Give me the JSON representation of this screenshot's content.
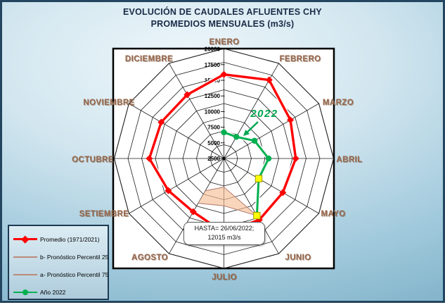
{
  "theme": {
    "page_bg_light": "#eef7fb",
    "page_bg_deep": "#86b6cc",
    "frame_border": "#24455f",
    "plot_bg": "#ffffff",
    "grid_color": "#1c1c1c",
    "month_label_color": "#96664a",
    "title_color": "#1a2b47",
    "promedio_color": "#ff0000",
    "percentil_line_color": "#bc8a7a",
    "band_fill_color": "rgba(246,189,146,0.62)",
    "ano2022_color": "#00B050",
    "annotation_green": "#00A550",
    "current_marker_fill": "#ffff00",
    "current_marker_stroke": "#9a9a00"
  },
  "title": {
    "line1": "EVOLUCIÓN DE CAUDALES AFLUENTES CHY",
    "line2": "PROMEDIOS MENSUALES (m3/s)"
  },
  "legend": {
    "items": [
      {
        "label": "Promedio (1971/2021)",
        "swatch": "red-diamond"
      },
      {
        "label": "b- Pronóstico Percentil 25",
        "swatch": "thin-line"
      },
      {
        "label": "a- Pronóstico Percentil 75",
        "swatch": "thin-line"
      },
      {
        "label": "Año 2022",
        "swatch": "green-circle"
      }
    ]
  },
  "callout": {
    "line1": "HASTA= 26/06/2022;",
    "line2": "12015 m3/s"
  },
  "annotation": {
    "year": "2022"
  },
  "chart_data": {
    "type": "line",
    "variant": "radar",
    "title": "EVOLUCIÓN DE CAUDALES AFLUENTES CHY — PROMEDIOS MENSUALES (m3/s)",
    "categories": [
      "ENERO",
      "FEBRERO",
      "MARZO",
      "ABRIL",
      "MAYO",
      "JUNIO",
      "JULIO",
      "AGOSTO",
      "SETIEMBRE",
      "OCTUBRE",
      "NOVIEMBRE",
      "DICIEMBRE"
    ],
    "radial_axis": {
      "min": 0,
      "max": 20000,
      "step": 2500,
      "tick_labels": [
        "2500",
        "5000",
        "7500",
        "10000",
        "12500",
        "15000",
        "17500",
        "20000"
      ]
    },
    "grid": true,
    "legend_position": "bottom-left",
    "series": [
      {
        "name": "Promedio (1971/2021)",
        "color": "#ff0000",
        "marker": "diamond",
        "values": [
          15300,
          16500,
          14000,
          13100,
          12400,
          12900,
          13500,
          11200,
          11700,
          13600,
          13200,
          13400
        ]
      },
      {
        "name": "b- Pronóstico Percentil 25",
        "color": "#bc8a7a",
        "marker": "none",
        "values": [
          null,
          null,
          null,
          null,
          null,
          12015,
          5200,
          6800,
          null,
          null,
          null,
          null
        ]
      },
      {
        "name": "a- Pronóstico Percentil 75",
        "color": "#bc8a7a",
        "marker": "none",
        "values": [
          null,
          null,
          null,
          null,
          null,
          12015,
          8600,
          9400,
          null,
          null,
          null,
          null
        ]
      },
      {
        "name": "Año 2022",
        "color": "#00B050",
        "marker": "circle",
        "values": [
          4750,
          4550,
          6450,
          8150,
          7330,
          12015,
          null,
          null,
          null,
          null,
          null,
          null
        ],
        "yellow_square_months": [
          "MAYO",
          "JUNIO"
        ]
      }
    ],
    "annotations": [
      {
        "text": "2022",
        "type": "arrow-label",
        "color": "#00A550"
      },
      {
        "text": "HASTA= 26/06/2022; 12015 m3/s",
        "type": "callout"
      }
    ]
  }
}
